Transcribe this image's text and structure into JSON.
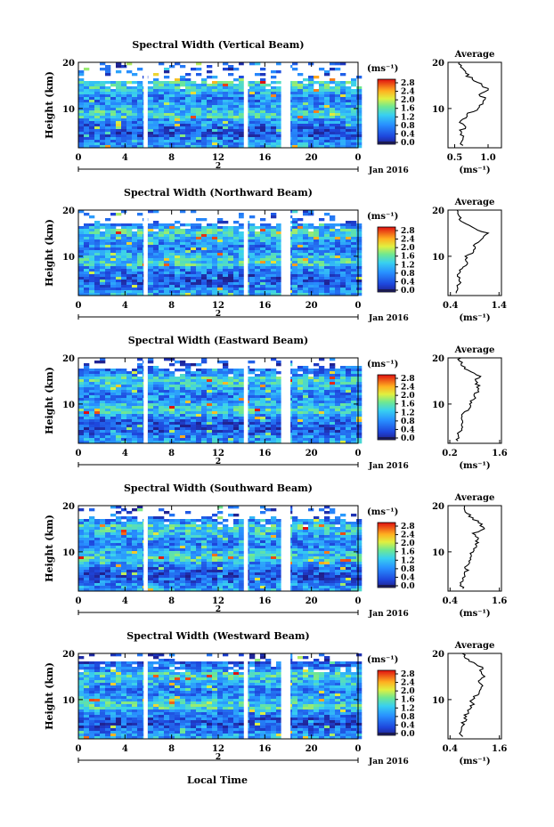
{
  "figure": {
    "xlabel": "Local Time",
    "date_label": "Jan 2016",
    "day_label": "2",
    "colorbar_unit": "(ms⁻¹)",
    "colorbar_ticks": [
      "2.8",
      "2.4",
      "2.0",
      "1.6",
      "1.2",
      "0.8",
      "0.4",
      "0.0"
    ],
    "average_title": "Average",
    "average_unit": "(ms⁻¹)"
  },
  "chart_data": [
    {
      "type": "heatmap",
      "title": "Spectral Width (Vertical Beam)",
      "ylabel": "Height (km)",
      "x_ticks": [
        "0",
        "4",
        "8",
        "12",
        "16",
        "20",
        "0"
      ],
      "y_ticks": [
        "20",
        "10"
      ],
      "xlim": [
        0,
        24
      ],
      "ylim": [
        1.5,
        20
      ],
      "gaps_hours": [
        [
          5.6,
          5.95
        ],
        [
          14.2,
          14.55
        ],
        [
          17.4,
          18.2
        ]
      ],
      "upper_white_from_km": 16.5,
      "color_range": [
        0.0,
        2.8
      ],
      "average_profile": {
        "title": "Average",
        "x_ticks": [
          "0.5",
          "1.0"
        ],
        "xlim": [
          0.4,
          1.2
        ],
        "y_ticks": [
          "20",
          "10"
        ],
        "height_km": [
          2,
          3,
          4,
          5,
          6,
          7,
          8,
          9,
          10,
          11,
          12,
          13,
          14,
          15,
          16,
          17,
          18,
          19,
          20
        ],
        "value": [
          0.62,
          0.58,
          0.63,
          0.57,
          0.66,
          0.6,
          0.64,
          0.72,
          0.85,
          0.9,
          0.98,
          0.88,
          1.02,
          0.92,
          0.8,
          0.7,
          0.64,
          0.58,
          0.55
        ]
      }
    },
    {
      "type": "heatmap",
      "title": "Spectral Width (Northward Beam)",
      "ylabel": "Height (km)",
      "x_ticks": [
        "0",
        "4",
        "8",
        "12",
        "16",
        "20",
        "0"
      ],
      "y_ticks": [
        "20",
        "10"
      ],
      "xlim": [
        0,
        24
      ],
      "ylim": [
        1.5,
        20
      ],
      "gaps_hours": [
        [
          5.6,
          5.95
        ],
        [
          14.2,
          14.55
        ],
        [
          17.4,
          18.2
        ]
      ],
      "upper_white_from_km": 17.5,
      "color_range": [
        0.0,
        2.8
      ],
      "average_profile": {
        "title": "Average",
        "x_ticks": [
          "0.4",
          "1.4"
        ],
        "xlim": [
          0.35,
          1.45
        ],
        "y_ticks": [
          "20",
          "10"
        ],
        "height_km": [
          2,
          3,
          4,
          5,
          6,
          7,
          8,
          9,
          10,
          11,
          12,
          13,
          14,
          15,
          16,
          17,
          18,
          19,
          20
        ],
        "value": [
          0.55,
          0.52,
          0.56,
          0.6,
          0.58,
          0.62,
          0.7,
          0.75,
          0.72,
          0.9,
          0.88,
          0.95,
          1.1,
          1.15,
          0.9,
          0.7,
          0.62,
          0.58,
          0.56
        ]
      }
    },
    {
      "type": "heatmap",
      "title": "Spectral Width (Eastward Beam)",
      "ylabel": "Height (km)",
      "x_ticks": [
        "0",
        "4",
        "8",
        "12",
        "16",
        "20",
        "0"
      ],
      "y_ticks": [
        "20",
        "10"
      ],
      "xlim": [
        0,
        24
      ],
      "ylim": [
        1.5,
        20
      ],
      "gaps_hours": [
        [
          5.6,
          5.95
        ],
        [
          14.2,
          14.55
        ],
        [
          17.4,
          18.2
        ]
      ],
      "upper_white_from_km": 18.0,
      "color_range": [
        0.0,
        2.8
      ],
      "average_profile": {
        "title": "Average",
        "x_ticks": [
          "0.2",
          "1.6"
        ],
        "xlim": [
          0.15,
          1.65
        ],
        "y_ticks": [
          "20",
          "10"
        ],
        "height_km": [
          2,
          3,
          4,
          5,
          6,
          7,
          8,
          9,
          10,
          11,
          12,
          13,
          14,
          15,
          16,
          17,
          18,
          19,
          20
        ],
        "value": [
          0.45,
          0.42,
          0.48,
          0.5,
          0.55,
          0.52,
          0.6,
          0.7,
          0.8,
          0.85,
          0.9,
          1.05,
          1.0,
          0.9,
          1.1,
          0.8,
          0.6,
          0.5,
          0.45
        ]
      }
    },
    {
      "type": "heatmap",
      "title": "Spectral Width (Southward Beam)",
      "ylabel": "Height (km)",
      "x_ticks": [
        "0",
        "4",
        "8",
        "12",
        "16",
        "20",
        "0"
      ],
      "y_ticks": [
        "20",
        "10"
      ],
      "xlim": [
        0,
        24
      ],
      "ylim": [
        1.5,
        20
      ],
      "gaps_hours": [
        [
          5.6,
          5.95
        ],
        [
          14.2,
          14.55
        ],
        [
          17.4,
          18.2
        ]
      ],
      "upper_white_from_km": 17.5,
      "color_range": [
        0.0,
        2.8
      ],
      "average_profile": {
        "title": "Average",
        "x_ticks": [
          "0.4",
          "1.6"
        ],
        "xlim": [
          0.35,
          1.65
        ],
        "y_ticks": [
          "20",
          "10"
        ],
        "height_km": [
          2,
          3,
          4,
          5,
          6,
          7,
          8,
          9,
          10,
          11,
          12,
          13,
          14,
          15,
          16,
          17,
          18,
          19,
          20
        ],
        "value": [
          0.7,
          0.68,
          0.72,
          0.75,
          0.8,
          0.78,
          0.88,
          0.95,
          0.92,
          1.0,
          1.05,
          1.1,
          1.0,
          1.2,
          1.15,
          1.0,
          0.85,
          0.72,
          0.7
        ]
      }
    },
    {
      "type": "heatmap",
      "title": "Spectral Width (Westward Beam)",
      "ylabel": "Height (km)",
      "x_ticks": [
        "0",
        "4",
        "8",
        "12",
        "16",
        "20",
        "0"
      ],
      "y_ticks": [
        "20",
        "10"
      ],
      "xlim": [
        0,
        24
      ],
      "ylim": [
        1.5,
        20
      ],
      "gaps_hours": [
        [
          5.6,
          5.95
        ],
        [
          14.2,
          14.55
        ],
        [
          17.4,
          18.2
        ]
      ],
      "upper_white_from_km": 18.5,
      "color_range": [
        0.0,
        2.8
      ],
      "average_profile": {
        "title": "Average",
        "x_ticks": [
          "0.4",
          "1.6"
        ],
        "xlim": [
          0.35,
          1.65
        ],
        "y_ticks": [
          "20",
          "10"
        ],
        "height_km": [
          2,
          3,
          4,
          5,
          6,
          7,
          8,
          9,
          10,
          11,
          12,
          13,
          14,
          15,
          16,
          17,
          18,
          19,
          20
        ],
        "value": [
          0.68,
          0.66,
          0.7,
          0.72,
          0.78,
          0.8,
          0.9,
          0.95,
          0.9,
          1.05,
          1.1,
          1.2,
          1.1,
          1.25,
          1.15,
          1.2,
          0.95,
          0.8,
          0.72
        ]
      }
    }
  ]
}
